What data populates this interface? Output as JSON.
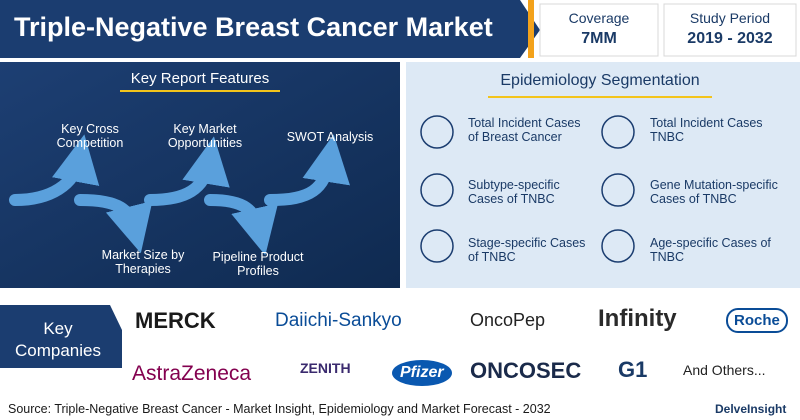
{
  "header": {
    "title": "Triple-Negative Breast Cancer Market",
    "coverage": {
      "label": "Coverage",
      "value": "7MM"
    },
    "study_period": {
      "label": "Study Period",
      "value": "2019 - 2032"
    }
  },
  "features": {
    "title": "Key Report Features",
    "items": [
      "Key Cross Competition",
      "Key Market Opportunities",
      "SWOT Analysis",
      "Market Size by Therapies",
      "Pipeline Product Profiles"
    ]
  },
  "epidemiology": {
    "title": "Epidemiology Segmentation",
    "items": [
      "Total Incident Cases of Breast Cancer",
      "Total Incident Cases TNBC",
      "Subtype-specific Cases of TNBC",
      "Gene Mutation-specific Cases of TNBC",
      "Stage-specific Cases of TNBC",
      "Age-specific Cases of TNBC"
    ]
  },
  "companies": {
    "title": "Key Companies",
    "names": [
      "MERCK",
      "Daiichi-Sankyo",
      "OncoPep",
      "Infinity",
      "Roche",
      "AstraZeneca",
      "ZENITH",
      "Pfizer",
      "ONCOSEC",
      "G1",
      "And Others..."
    ]
  },
  "footer": {
    "source": "Source: Triple-Negative Breast Cancer - Market Insight, Epidemiology and Market Forecast - 2032",
    "brand": "DelveInsight"
  }
}
